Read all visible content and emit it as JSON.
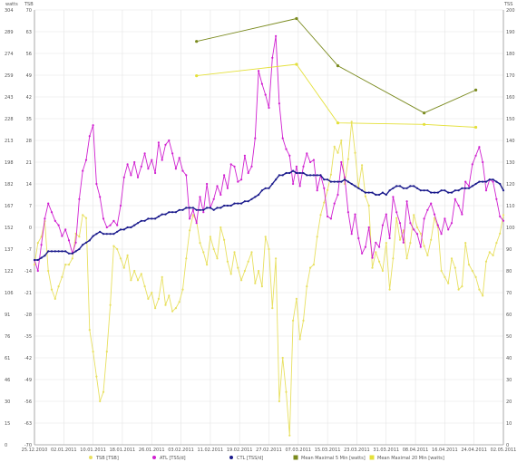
{
  "chart_data": {
    "type": "line",
    "left_axis_labels": [
      "watts",
      "TSB"
    ],
    "right_axis_label": "TSS",
    "watts_ticks": [
      "304",
      "289",
      "274",
      "259",
      "243",
      "228",
      "213",
      "198",
      "182",
      "167",
      "152",
      "137",
      "122",
      "106",
      "91",
      "76",
      "61",
      "46",
      "30",
      "15",
      "0"
    ],
    "tsb_ticks": [
      "70",
      "63",
      "56",
      "49",
      "42",
      "35",
      "28",
      "21",
      "14",
      "7",
      "0",
      "-7",
      "-14",
      "-21",
      "-28",
      "-35",
      "-42",
      "-49",
      "-56",
      "-63",
      "-70"
    ],
    "tss_ticks": [
      "200",
      "190",
      "180",
      "170",
      "160",
      "150",
      "140",
      "130",
      "120",
      "110",
      "100",
      "90",
      "80",
      "70",
      "60",
      "50",
      "40",
      "30",
      "20",
      "10",
      "0"
    ],
    "tsb_range": [
      -70,
      70
    ],
    "tss_range": [
      0,
      200
    ],
    "watts_range": [
      0,
      304
    ],
    "x_labels": [
      "25.12.2010",
      "02.01.2011",
      "10.01.2011",
      "18.01.2011",
      "26.01.2011",
      "03.02.2011",
      "11.02.2011",
      "19.02.2011",
      "27.02.2011",
      "07.03.2011",
      "15.03.2011",
      "23.03.2011",
      "31.03.2011",
      "08.04.2011",
      "16.04.2011",
      "24.04.2011",
      "02.05.2011"
    ],
    "x_range": [
      0,
      136
    ],
    "grid": true,
    "legend_position": "bottom",
    "series": [
      {
        "name": "TSB [TSB]",
        "axis": "tsb",
        "color": "#e8e060",
        "x": [
          0,
          1,
          2,
          3,
          4,
          5,
          6,
          7,
          8,
          9,
          10,
          11,
          12,
          13,
          14,
          15,
          16,
          17,
          18,
          19,
          20,
          21,
          22,
          23,
          24,
          25,
          26,
          27,
          28,
          29,
          30,
          31,
          32,
          33,
          34,
          35,
          36,
          37,
          38,
          39,
          40,
          41,
          42,
          43,
          44,
          45,
          46,
          47,
          48,
          49,
          50,
          51,
          52,
          53,
          54,
          55,
          56,
          57,
          58,
          59,
          60,
          61,
          62,
          63,
          64,
          65,
          66,
          67,
          68,
          69,
          70,
          71,
          72,
          73,
          74,
          75,
          76,
          77,
          78,
          79,
          80,
          81,
          82,
          83,
          84,
          85,
          86,
          87,
          88,
          89,
          90,
          91,
          92,
          93,
          94,
          95,
          96,
          97,
          98,
          99,
          100,
          101,
          102,
          103,
          104,
          105,
          106,
          107,
          108,
          109,
          110,
          111,
          112,
          113,
          114,
          115,
          116,
          117,
          118,
          119,
          120,
          121,
          122,
          123,
          124,
          125,
          126,
          127,
          128,
          129,
          130,
          131,
          132,
          133,
          134,
          135,
          136
        ],
        "values": [
          -12,
          -5,
          -3,
          2,
          -14,
          -20,
          -23,
          -19,
          -16,
          -12,
          -12,
          -10,
          -2,
          -3,
          4,
          3,
          -33,
          -40,
          -48,
          -56,
          -53,
          -40,
          -25,
          -6,
          -7,
          -10,
          -13,
          -9,
          -17,
          -14,
          -17,
          -15,
          -19,
          -23,
          -21,
          -26,
          -23,
          -16,
          -25,
          -22,
          -27,
          -26,
          -24,
          -20,
          -10,
          -1,
          4,
          2,
          -5,
          -8,
          -12,
          -3,
          -7,
          -10,
          0,
          -4,
          -11,
          -15,
          -8,
          -13,
          -17,
          -14,
          -11,
          -8,
          -18,
          -14,
          -19,
          -3,
          -7,
          -26,
          -10,
          -56,
          -42,
          -53,
          -67,
          -30,
          -23,
          -36,
          -30,
          -19,
          -13,
          -12,
          -3,
          4,
          8,
          12,
          17,
          26,
          24,
          28,
          14,
          22,
          34,
          24,
          13,
          20,
          10,
          7,
          -13,
          -8,
          -11,
          -14,
          -5,
          -20,
          -10,
          3,
          -4,
          -1,
          -10,
          -5,
          4,
          0,
          -2,
          -6,
          -9,
          -4,
          3,
          0,
          -14,
          -16,
          -18,
          -10,
          -13,
          -20,
          -19,
          -5,
          -12,
          -14,
          -16,
          -20,
          -22,
          -11,
          -8,
          -9,
          -5,
          -2,
          4
        ]
      },
      {
        "name": "ATL [TSS/d]",
        "axis": "tss",
        "color": "#d020d0",
        "x": [
          0,
          1,
          2,
          3,
          4,
          5,
          6,
          7,
          8,
          9,
          10,
          11,
          12,
          13,
          14,
          15,
          16,
          17,
          18,
          19,
          20,
          21,
          22,
          23,
          24,
          25,
          26,
          27,
          28,
          29,
          30,
          31,
          32,
          33,
          34,
          35,
          36,
          37,
          38,
          39,
          40,
          41,
          42,
          43,
          44,
          45,
          46,
          47,
          48,
          49,
          50,
          51,
          52,
          53,
          54,
          55,
          56,
          57,
          58,
          59,
          60,
          61,
          62,
          63,
          64,
          65,
          66,
          67,
          68,
          69,
          70,
          71,
          72,
          73,
          74,
          75,
          76,
          77,
          78,
          79,
          80,
          81,
          82,
          83,
          84,
          85,
          86,
          87,
          88,
          89,
          90,
          91,
          92,
          93,
          94,
          95,
          96,
          97,
          98,
          99,
          100,
          101,
          102,
          103,
          104,
          105,
          106,
          107,
          108,
          109,
          110,
          111,
          112,
          113,
          114,
          115,
          116,
          117,
          118,
          119,
          120,
          121,
          122,
          123,
          124,
          125,
          126,
          127,
          128,
          129,
          130,
          131,
          132,
          133,
          134,
          135,
          136
        ],
        "values": [
          85,
          80,
          92,
          104,
          111,
          107,
          103,
          101,
          96,
          99,
          94,
          88,
          93,
          113,
          126,
          131,
          142,
          147,
          120,
          114,
          104,
          100,
          101,
          103,
          101,
          110,
          123,
          129,
          124,
          130,
          123,
          128,
          134,
          127,
          131,
          125,
          139,
          131,
          138,
          140,
          134,
          127,
          132,
          126,
          124,
          104,
          108,
          102,
          114,
          107,
          120,
          109,
          113,
          119,
          115,
          124,
          118,
          129,
          128,
          121,
          122,
          133,
          125,
          128,
          141,
          172,
          166,
          161,
          155,
          178,
          188,
          157,
          141,
          136,
          133,
          120,
          128,
          119,
          128,
          134,
          130,
          131,
          117,
          124,
          118,
          105,
          104,
          111,
          115,
          130,
          123,
          107,
          97,
          106,
          95,
          88,
          91,
          100,
          86,
          93,
          91,
          101,
          106,
          95,
          114,
          107,
          102,
          93,
          112,
          102,
          99,
          97,
          91,
          104,
          108,
          111,
          106,
          101,
          97,
          104,
          99,
          102,
          113,
          110,
          106,
          121,
          119,
          129,
          133,
          137,
          130,
          117,
          122,
          121,
          113,
          105,
          103
        ]
      },
      {
        "name": "CTL [TSS/d]",
        "axis": "tss",
        "color": "#1a1a8c",
        "x": [
          0,
          1,
          2,
          3,
          4,
          5,
          6,
          7,
          8,
          9,
          10,
          11,
          12,
          13,
          14,
          15,
          16,
          17,
          18,
          19,
          20,
          21,
          22,
          23,
          24,
          25,
          26,
          27,
          28,
          29,
          30,
          31,
          32,
          33,
          34,
          35,
          36,
          37,
          38,
          39,
          40,
          41,
          42,
          43,
          44,
          45,
          46,
          47,
          48,
          49,
          50,
          51,
          52,
          53,
          54,
          55,
          56,
          57,
          58,
          59,
          60,
          61,
          62,
          63,
          64,
          65,
          66,
          67,
          68,
          69,
          70,
          71,
          72,
          73,
          74,
          75,
          76,
          77,
          78,
          79,
          80,
          81,
          82,
          83,
          84,
          85,
          86,
          87,
          88,
          89,
          90,
          91,
          92,
          93,
          94,
          95,
          96,
          97,
          98,
          99,
          100,
          101,
          102,
          103,
          104,
          105,
          106,
          107,
          108,
          109,
          110,
          111,
          112,
          113,
          114,
          115,
          116,
          117,
          118,
          119,
          120,
          121,
          122,
          123,
          124,
          125,
          126,
          127,
          128,
          129,
          130,
          131,
          132,
          133,
          134,
          135,
          136
        ],
        "values": [
          85,
          85,
          86,
          87,
          89,
          89,
          89,
          89,
          89,
          89,
          88,
          88,
          89,
          90,
          92,
          93,
          94,
          96,
          97,
          98,
          97,
          97,
          97,
          97,
          98,
          99,
          99,
          100,
          100,
          101,
          102,
          103,
          103,
          104,
          104,
          104,
          105,
          106,
          106,
          107,
          107,
          107,
          108,
          108,
          109,
          109,
          109,
          108,
          108,
          108,
          109,
          109,
          108,
          109,
          109,
          110,
          110,
          110,
          111,
          111,
          111,
          112,
          112,
          113,
          114,
          115,
          117,
          118,
          118,
          120,
          122,
          124,
          124,
          125,
          125,
          126,
          125,
          125,
          125,
          124,
          124,
          124,
          124,
          124,
          122,
          122,
          121,
          121,
          121,
          121,
          122,
          121,
          120,
          119,
          118,
          117,
          116,
          116,
          116,
          115,
          115,
          116,
          115,
          117,
          118,
          119,
          119,
          118,
          118,
          119,
          119,
          118,
          117,
          117,
          117,
          116,
          116,
          116,
          117,
          117,
          116,
          116,
          117,
          117,
          118,
          118,
          118,
          119,
          120,
          121,
          121,
          121,
          122,
          122,
          121,
          120,
          117
        ]
      },
      {
        "name": "Mean Maximal 5 Min [watts]",
        "axis": "watts",
        "color": "#7a8a1e",
        "x": [
          47,
          76,
          88,
          113,
          128
        ],
        "values": [
          282,
          298,
          265,
          232,
          248
        ]
      },
      {
        "name": "Mean Maximal 20 Min [watts]",
        "axis": "watts",
        "color": "#e4e03a",
        "x": [
          47,
          76,
          88,
          113,
          128
        ],
        "values": [
          258,
          266,
          225,
          224,
          222
        ]
      }
    ]
  }
}
